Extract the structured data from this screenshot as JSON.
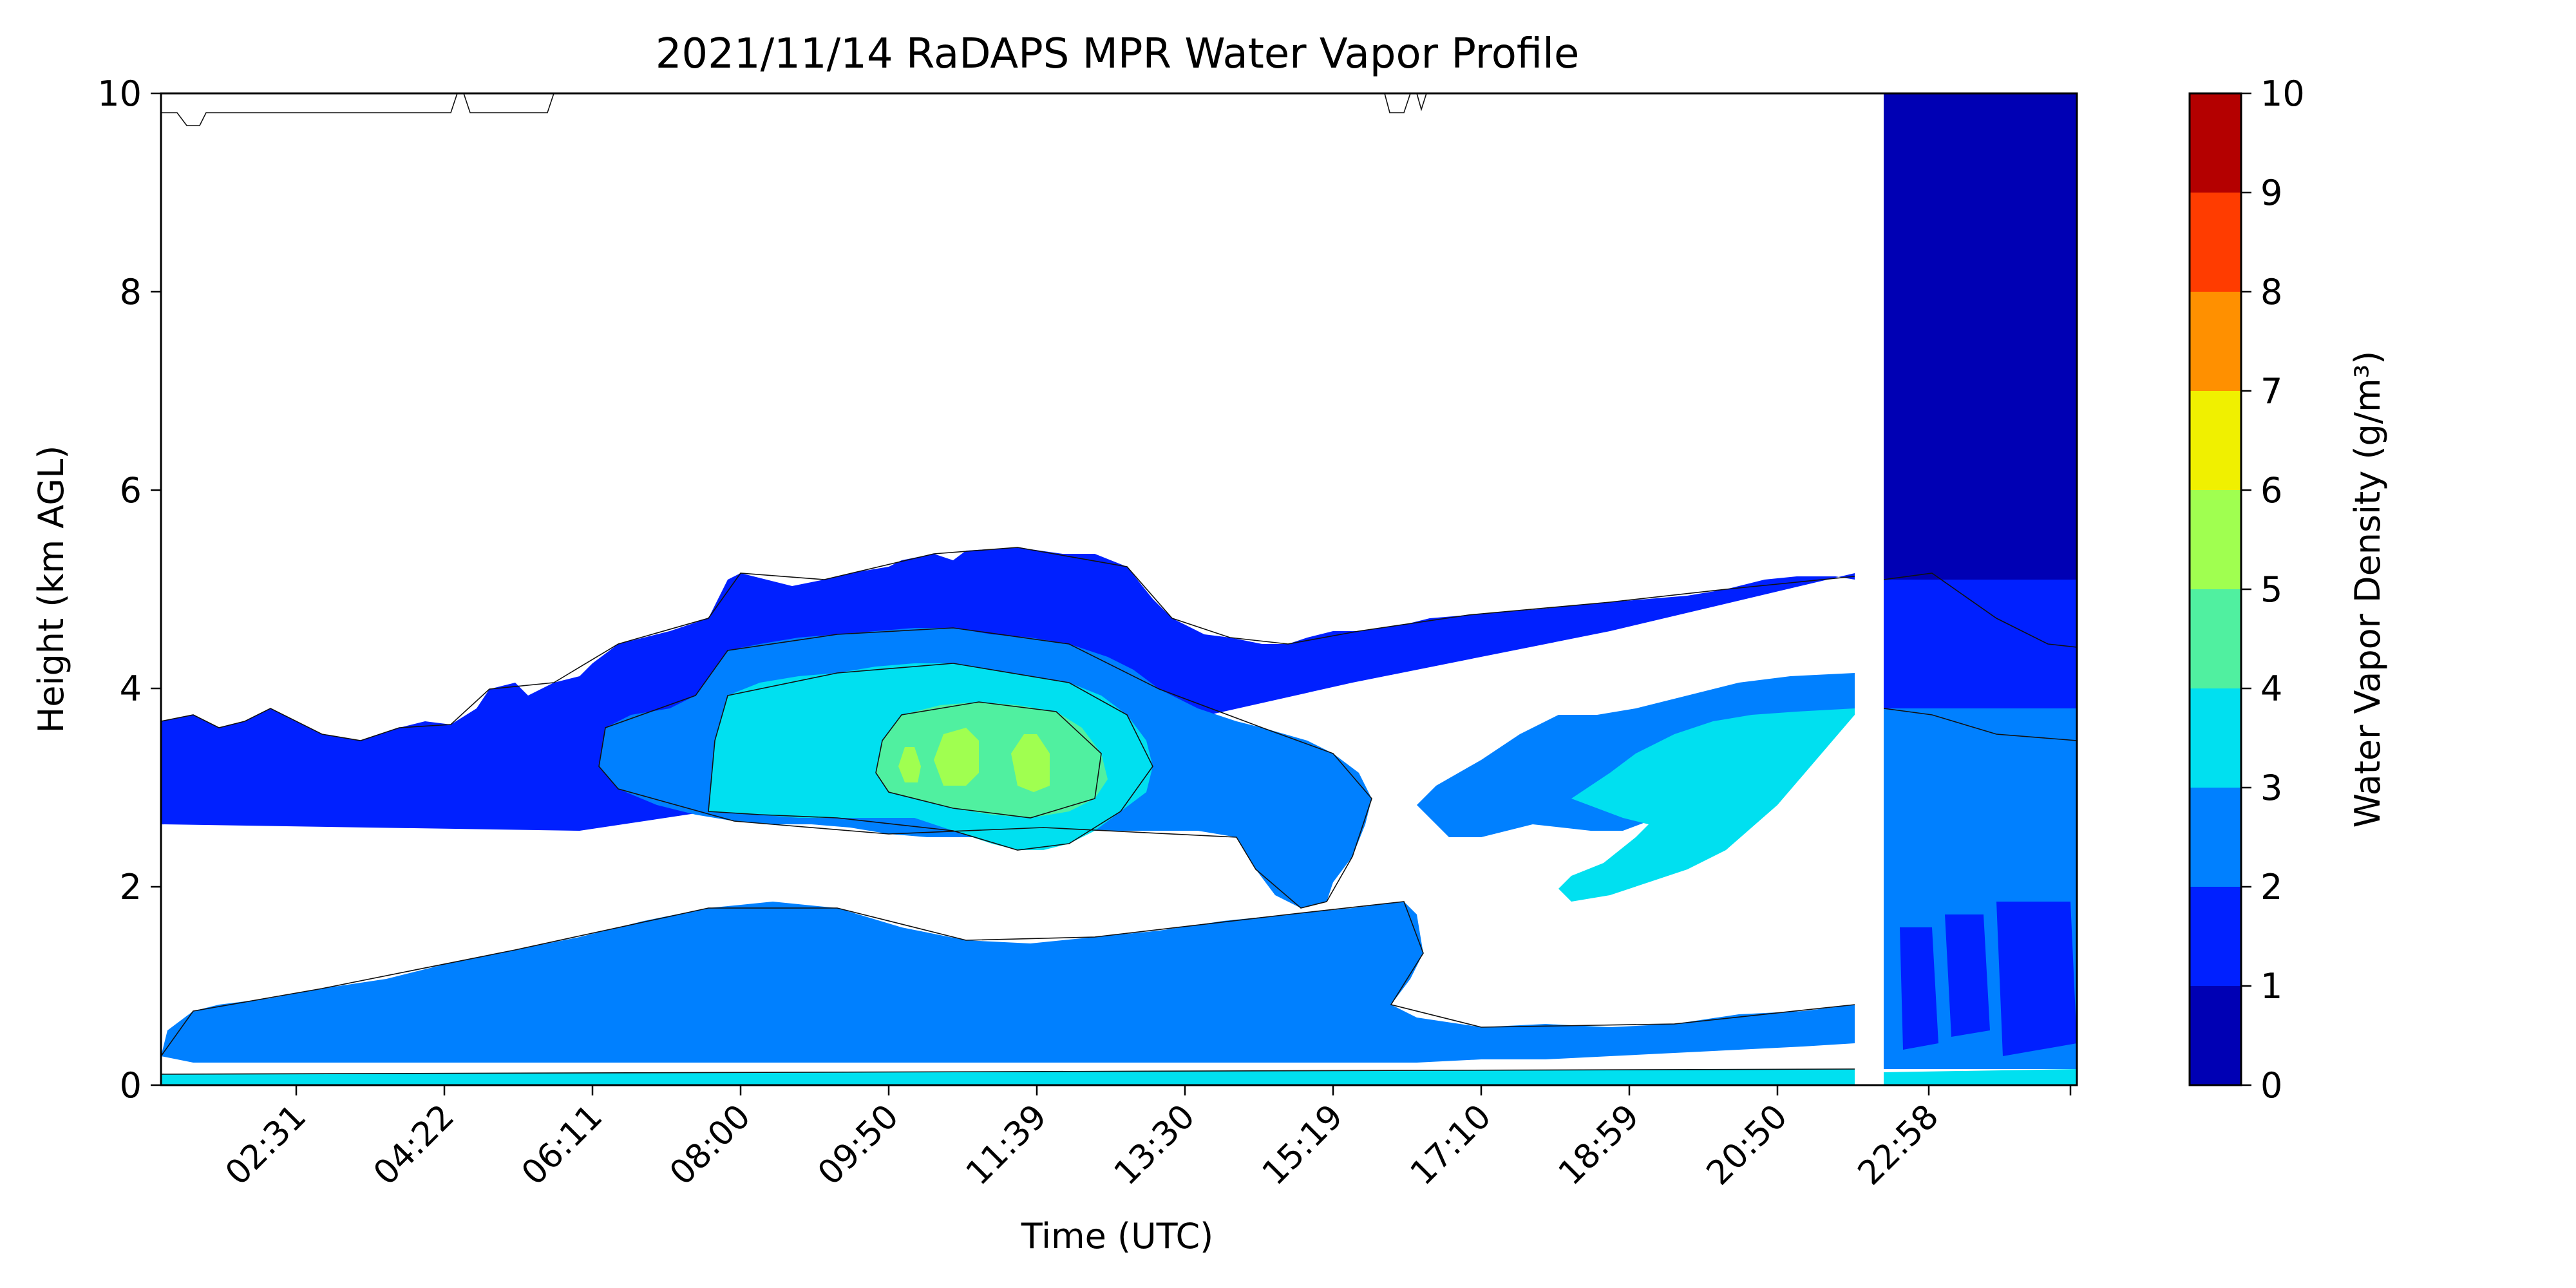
{
  "chart_data": {
    "type": "heatmap",
    "title": "2021/11/14 RaDAPS MPR Water Vapor Profile",
    "xlabel": "Time (UTC)",
    "ylabel": "Height (km AGL)",
    "x_ticks": [
      "02:31",
      "04:22",
      "06:11",
      "08:00",
      "09:50",
      "11:39",
      "13:30",
      "15:19",
      "17:10",
      "18:59",
      "20:50",
      "22:58"
    ],
    "ylim": [
      0,
      10
    ],
    "y_ticks": [
      0,
      2,
      4,
      6,
      8,
      10
    ],
    "grid": false,
    "colorbar": {
      "label": "Water Vapor Density (g/m³)",
      "ticks": [
        0,
        1,
        2,
        3,
        4,
        5,
        6,
        7,
        8,
        9,
        10
      ],
      "levels": [
        0,
        1,
        2,
        3,
        4,
        5,
        6,
        7,
        8,
        9,
        10
      ],
      "colors": [
        "#0000b4",
        "#0020ff",
        "#0080ff",
        "#00e0f0",
        "#50f0a0",
        "#a0ff50",
        "#f0f000",
        "#ff9000",
        "#ff3c00",
        "#b40000"
      ]
    },
    "features": [
      {
        "desc": "dry layer above ~5 km (<1 g/m3)",
        "value_range": [
          0,
          1
        ]
      },
      {
        "desc": "moist layer 0.3–1.5 km",
        "value_range": [
          2,
          3
        ]
      },
      {
        "desc": "mid-level moist core 09:50–11:39 at ~3.3 km",
        "value_range": [
          5,
          6
        ]
      },
      {
        "desc": "surface layer near 0 km",
        "value_range": [
          3,
          4
        ]
      }
    ]
  }
}
